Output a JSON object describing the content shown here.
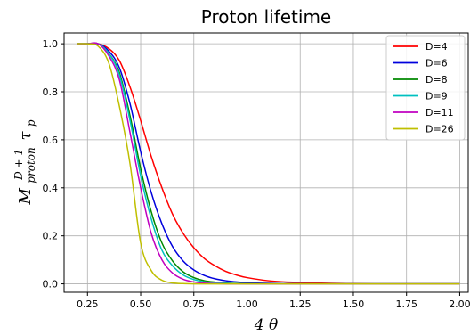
{
  "chart_data": {
    "type": "line",
    "title": "Proton lifetime",
    "xlabel": "4 θ",
    "ylabel": {
      "base": "M",
      "superscript": "D + 1",
      "subscript": "proton",
      "tau": "τ",
      "tau_sub": "p"
    },
    "xlim": [
      0.14,
      2.04
    ],
    "ylim": [
      -0.035,
      1.045
    ],
    "xticks": [
      "0.25",
      "0.50",
      "0.75",
      "1.00",
      "1.25",
      "1.50",
      "1.75",
      "2.00"
    ],
    "yticks": [
      "0.0",
      "0.2",
      "0.4",
      "0.6",
      "0.8",
      "1.0"
    ],
    "grid": true,
    "legend_position": "top-right",
    "x": [
      0.2,
      0.25,
      0.3,
      0.35,
      0.4,
      0.45,
      0.5,
      0.55,
      0.6,
      0.65,
      0.7,
      0.75,
      0.8,
      0.85,
      0.9,
      0.95,
      1.0,
      1.1,
      1.2,
      1.3,
      1.4,
      1.5,
      1.6,
      1.7,
      1.8,
      1.9,
      2.0
    ],
    "series": [
      {
        "name": "D=4",
        "color": "#ff0000",
        "values": [
          1.0,
          1.0,
          1.0,
          0.98,
          0.93,
          0.82,
          0.68,
          0.53,
          0.4,
          0.29,
          0.21,
          0.15,
          0.105,
          0.075,
          0.052,
          0.037,
          0.026,
          0.013,
          0.007,
          0.004,
          0.002,
          0.001,
          0.0,
          0.0,
          0.0,
          0.0,
          0.0
        ]
      },
      {
        "name": "D=6",
        "color": "#0000dd",
        "values": [
          1.0,
          1.0,
          1.0,
          0.97,
          0.9,
          0.75,
          0.55,
          0.38,
          0.25,
          0.155,
          0.095,
          0.058,
          0.035,
          0.021,
          0.013,
          0.008,
          0.005,
          0.002,
          0.001,
          0.0,
          0.0,
          0.0,
          0.0,
          0.0,
          0.0,
          0.0,
          0.0
        ]
      },
      {
        "name": "D=8",
        "color": "#008800",
        "values": [
          1.0,
          1.0,
          1.0,
          0.96,
          0.88,
          0.7,
          0.48,
          0.3,
          0.17,
          0.095,
          0.05,
          0.026,
          0.013,
          0.007,
          0.003,
          0.002,
          0.001,
          0.0,
          0.0,
          0.0,
          0.0,
          0.0,
          0.0,
          0.0,
          0.0,
          0.0,
          0.0
        ]
      },
      {
        "name": "D=9",
        "color": "#00c0c0",
        "values": [
          1.0,
          1.0,
          1.0,
          0.96,
          0.87,
          0.68,
          0.45,
          0.27,
          0.14,
          0.075,
          0.037,
          0.018,
          0.008,
          0.004,
          0.002,
          0.001,
          0.0,
          0.0,
          0.0,
          0.0,
          0.0,
          0.0,
          0.0,
          0.0,
          0.0,
          0.0,
          0.0
        ]
      },
      {
        "name": "D=11",
        "color": "#c000c0",
        "values": [
          1.0,
          1.0,
          1.0,
          0.95,
          0.85,
          0.63,
          0.4,
          0.21,
          0.1,
          0.045,
          0.019,
          0.008,
          0.003,
          0.001,
          0.0,
          0.0,
          0.0,
          0.0,
          0.0,
          0.0,
          0.0,
          0.0,
          0.0,
          0.0,
          0.0,
          0.0,
          0.0
        ]
      },
      {
        "name": "D=26",
        "color": "#bfbf00",
        "values": [
          1.0,
          1.0,
          0.99,
          0.92,
          0.74,
          0.5,
          0.17,
          0.055,
          0.015,
          0.004,
          0.001,
          0.0,
          0.0,
          0.0,
          0.0,
          0.0,
          0.0,
          0.0,
          0.0,
          0.0,
          0.0,
          0.0,
          0.0,
          0.0,
          0.0,
          0.0,
          0.0
        ]
      }
    ]
  }
}
